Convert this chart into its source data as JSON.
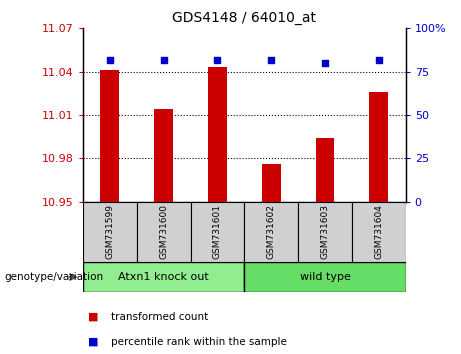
{
  "title": "GDS4148 / 64010_at",
  "samples": [
    "GSM731599",
    "GSM731600",
    "GSM731601",
    "GSM731602",
    "GSM731603",
    "GSM731604"
  ],
  "transformed_counts": [
    11.041,
    11.014,
    11.043,
    10.976,
    10.994,
    11.026
  ],
  "percentile_ranks": [
    82,
    82,
    82,
    82,
    80,
    82
  ],
  "ylim_left": [
    10.95,
    11.07
  ],
  "ylim_right": [
    0,
    100
  ],
  "yticks_left": [
    10.95,
    10.98,
    11.01,
    11.04,
    11.07
  ],
  "yticks_right": [
    0,
    25,
    50,
    75,
    100
  ],
  "ytick_labels_left": [
    "10.95",
    "10.98",
    "11.01",
    "11.04",
    "11.07"
  ],
  "ytick_labels_right": [
    "0",
    "25",
    "50",
    "75",
    "100%"
  ],
  "grid_lines": [
    10.98,
    11.01,
    11.04
  ],
  "bar_color": "#cc0000",
  "dot_color": "#0000cc",
  "bar_bottom": 10.95,
  "groups": [
    {
      "label": "Atxn1 knock out",
      "indices": [
        0,
        1,
        2
      ],
      "color": "#90ee90"
    },
    {
      "label": "wild type",
      "indices": [
        3,
        4,
        5
      ],
      "color": "#66dd66"
    }
  ],
  "legend_items": [
    {
      "label": "transformed count",
      "color": "#cc0000"
    },
    {
      "label": "percentile rank within the sample",
      "color": "#0000cc"
    }
  ],
  "genotype_label": "genotype/variation",
  "background_color": "#ffffff",
  "tick_color_left": "#cc0000",
  "tick_color_right": "#0000cc",
  "sample_box_color": "#d0d0d0",
  "bar_width": 0.35
}
